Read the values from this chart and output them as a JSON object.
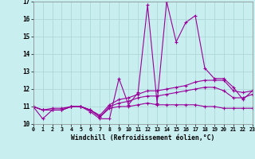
{
  "xlabel": "Windchill (Refroidissement éolien,°C)",
  "bg_color": "#c8eef0",
  "line_color": "#990099",
  "grid_color": "#aadddd",
  "xlim": [
    0,
    23
  ],
  "ylim": [
    10,
    17
  ],
  "yticks": [
    10,
    11,
    12,
    13,
    14,
    15,
    16,
    17
  ],
  "xticks": [
    0,
    1,
    2,
    3,
    4,
    5,
    6,
    7,
    8,
    9,
    10,
    11,
    12,
    13,
    14,
    15,
    16,
    17,
    18,
    19,
    20,
    21,
    22,
    23
  ],
  "series": {
    "main": [
      11.0,
      10.3,
      10.8,
      10.8,
      11.0,
      11.0,
      10.7,
      10.3,
      10.3,
      12.6,
      11.1,
      11.8,
      16.8,
      11.2,
      17.0,
      14.7,
      15.8,
      16.2,
      13.2,
      12.6,
      12.6,
      12.1,
      11.4,
      11.9
    ],
    "line2": [
      11.0,
      10.8,
      10.9,
      10.9,
      11.0,
      11.0,
      10.8,
      10.5,
      11.1,
      11.4,
      11.5,
      11.7,
      11.9,
      11.9,
      12.0,
      12.1,
      12.2,
      12.4,
      12.5,
      12.5,
      12.5,
      11.9,
      11.8,
      11.9
    ],
    "line3": [
      11.0,
      10.8,
      10.8,
      10.8,
      11.0,
      11.0,
      10.8,
      10.4,
      11.0,
      11.2,
      11.3,
      11.5,
      11.6,
      11.6,
      11.7,
      11.8,
      11.9,
      12.0,
      12.1,
      12.1,
      11.9,
      11.5,
      11.5,
      11.7
    ],
    "line4": [
      11.0,
      10.8,
      10.8,
      10.8,
      11.0,
      11.0,
      10.8,
      10.4,
      10.9,
      11.0,
      11.0,
      11.1,
      11.2,
      11.1,
      11.1,
      11.1,
      11.1,
      11.1,
      11.0,
      11.0,
      10.9,
      10.9,
      10.9,
      10.9
    ]
  }
}
